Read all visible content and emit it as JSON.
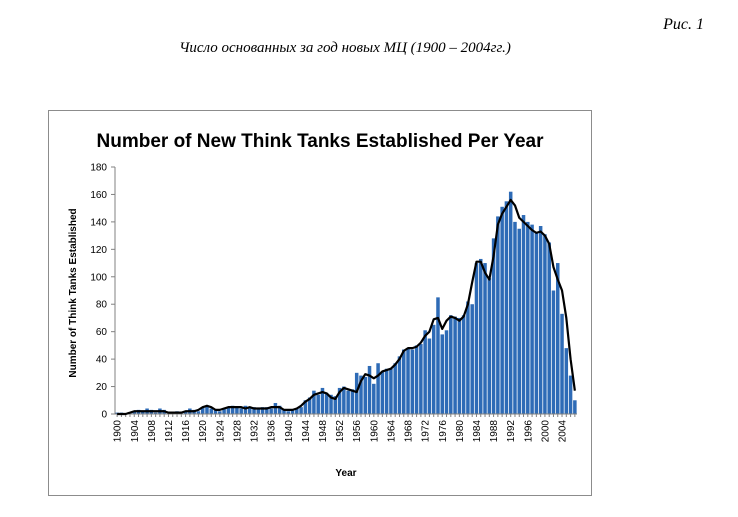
{
  "figure": {
    "label": "Рис. 1",
    "caption": "Число основанных за год новых МЦ  (1900 – 2004гг.)"
  },
  "chart_data": {
    "type": "bar",
    "title": "Number of New Think Tanks Established Per Year",
    "xlabel": "Year",
    "ylabel": "Number of Think Tanks Established",
    "ylim": [
      0,
      180
    ],
    "yticks": [
      0,
      20,
      40,
      60,
      80,
      100,
      120,
      140,
      160,
      180
    ],
    "xticks": [
      "1900",
      "1904",
      "1908",
      "1912",
      "1916",
      "1920",
      "1924",
      "1928",
      "1932",
      "1936",
      "1940",
      "1944",
      "1948",
      "1952",
      "1956",
      "1960",
      "1964",
      "1968",
      "1972",
      "1976",
      "1980",
      "1984",
      "1988",
      "1992",
      "1996",
      "2000",
      "2004"
    ],
    "grid": false,
    "legend": "none",
    "bar_color": "#2e6bb6",
    "line_color": "#000000",
    "x": [
      1900,
      1901,
      1902,
      1903,
      1904,
      1905,
      1906,
      1907,
      1908,
      1909,
      1910,
      1911,
      1912,
      1913,
      1914,
      1915,
      1916,
      1917,
      1918,
      1919,
      1920,
      1921,
      1922,
      1923,
      1924,
      1925,
      1926,
      1927,
      1928,
      1929,
      1930,
      1931,
      1932,
      1933,
      1934,
      1935,
      1936,
      1937,
      1938,
      1939,
      1940,
      1941,
      1942,
      1943,
      1944,
      1945,
      1946,
      1947,
      1948,
      1949,
      1950,
      1951,
      1952,
      1953,
      1954,
      1955,
      1956,
      1957,
      1958,
      1959,
      1960,
      1961,
      1962,
      1963,
      1964,
      1965,
      1966,
      1967,
      1968,
      1969,
      1970,
      1971,
      1972,
      1973,
      1974,
      1975,
      1976,
      1977,
      1978,
      1979,
      1980,
      1981,
      1982,
      1983,
      1984,
      1985,
      1986,
      1987,
      1988,
      1989,
      1990,
      1991,
      1992,
      1993,
      1994,
      1995,
      1996,
      1997,
      1998,
      1999,
      2000,
      2001,
      2002,
      2003,
      2004,
      2005,
      2006,
      2007
    ],
    "series": [
      {
        "kind": "bar",
        "values": [
          1,
          1,
          0,
          1,
          2,
          3,
          2,
          4,
          3,
          1,
          4,
          3,
          1,
          1,
          2,
          1,
          2,
          4,
          3,
          2,
          5,
          6,
          4,
          3,
          2,
          4,
          5,
          6,
          5,
          4,
          6,
          4,
          5,
          4,
          5,
          5,
          4,
          8,
          6,
          3,
          2,
          3,
          4,
          5,
          10,
          12,
          17,
          14,
          19,
          15,
          14,
          13,
          19,
          20,
          17,
          18,
          30,
          28,
          27,
          35,
          22,
          37,
          31,
          33,
          33,
          37,
          42,
          47,
          48,
          47,
          50,
          51,
          61,
          55,
          65,
          85,
          58,
          61,
          72,
          71,
          70,
          72,
          82,
          80,
          110,
          113,
          110,
          99,
          128,
          144,
          151,
          155,
          162,
          140,
          135,
          145,
          140,
          138,
          132,
          137,
          131,
          125,
          90,
          110,
          73,
          48,
          28,
          10
        ]
      },
      {
        "kind": "line",
        "values": [
          0,
          0,
          0,
          1,
          2,
          2,
          2,
          2,
          2,
          2,
          2,
          2,
          1,
          1,
          1,
          1,
          2,
          2,
          2,
          3,
          5,
          6,
          5,
          3,
          3,
          4,
          5,
          5,
          5,
          5,
          4,
          5,
          4,
          4,
          4,
          4,
          5,
          5,
          5,
          3,
          3,
          3,
          4,
          6,
          9,
          11,
          14,
          15,
          16,
          15,
          12,
          11,
          16,
          19,
          18,
          17,
          16,
          24,
          29,
          28,
          26,
          28,
          31,
          32,
          33,
          36,
          40,
          46,
          48,
          48,
          49,
          52,
          57,
          60,
          69,
          70,
          62,
          68,
          71,
          70,
          68,
          71,
          80,
          96,
          111,
          111,
          103,
          98,
          115,
          138,
          146,
          151,
          156,
          152,
          143,
          140,
          137,
          134,
          132,
          133,
          130,
          124,
          107,
          98,
          90,
          70,
          40,
          17
        ]
      }
    ]
  }
}
